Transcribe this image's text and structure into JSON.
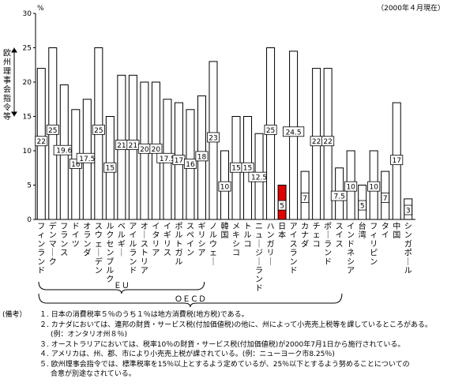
{
  "chart_data": {
    "type": "bar",
    "unit": "%",
    "date_note": "（2000年４月現在）",
    "ylim": [
      0,
      30
    ],
    "yticks": [
      0,
      5,
      10,
      15,
      20,
      25,
      30
    ],
    "categories": [
      "フィンランド",
      "デンマーク",
      "フランス",
      "ドイツ",
      "オランダ",
      "スウェーデン",
      "ルクセンブルク",
      "ベルギー",
      "アイルランド",
      "オーストリア",
      "イタリア",
      "イギリス",
      "ポルトガル",
      "スペイン",
      "ギリシア",
      "ノルウェー",
      "韓国",
      "メキシコ",
      "トルコ",
      "ニュージーランド",
      "ハンガリー",
      "日本",
      "アイスランド",
      "カナダ",
      "チェコ",
      "ポーランド",
      "スイス",
      "インドネシア",
      "台湾",
      "フィリピン",
      "タイ",
      "中国",
      "シンガポール"
    ],
    "values": [
      22,
      25,
      19.6,
      16,
      17.5,
      25,
      15,
      21,
      21,
      20,
      20,
      17.5,
      17,
      16,
      18,
      23,
      10,
      15,
      15,
      12.5,
      25,
      5,
      24.5,
      7,
      22,
      22,
      7.5,
      10,
      5,
      10,
      7,
      17,
      3
    ],
    "labels": [
      "22",
      "25",
      "19.6",
      "16",
      "17.5",
      "25",
      "15",
      "21",
      "21",
      "20",
      "20",
      "17.5",
      "17",
      "16",
      "18",
      "23",
      "10",
      "15",
      "15",
      "12.5",
      "25",
      "5",
      "24.5",
      "7",
      "22",
      "22",
      "7.5",
      "10",
      "5",
      "10",
      "7",
      "17",
      "3"
    ],
    "highlight_category": "日本",
    "highlight_color": "#e00000",
    "bar_color": "#ffffff",
    "reference_line": {
      "label": "欧州理事会指令等",
      "from": 15,
      "to": 25
    },
    "groups": [
      {
        "name": "ＥＵ",
        "from": 0,
        "to": 14
      },
      {
        "name": "ＯＥＣＤ",
        "from": 0,
        "to": 26
      }
    ]
  },
  "notes": {
    "heading": "(備考）",
    "items": [
      "１. 日本の消費税率５％のうち１％は地方消費税(地方税)である。",
      "２. カナダにおいては、連邦の財貨・サービス税(付加価値税)の他に、州によって小売売上税等を課しているところがある。",
      "(例：オンタリオ州８％)",
      "３. オーストラリアにおいては、税率10％の財貨・サービス税(付加価値税)が2000年7月1日から施行されている。",
      "４. アメリカは、州、郡、市により小売売上税が課されている。(例：ニューヨーク市8.25％)",
      "５. 欧州理事会指令では、標準税率を15％以上とするよう定めているが、25％以下とするよう努めることについての",
      "合意が別途なされている。"
    ]
  }
}
